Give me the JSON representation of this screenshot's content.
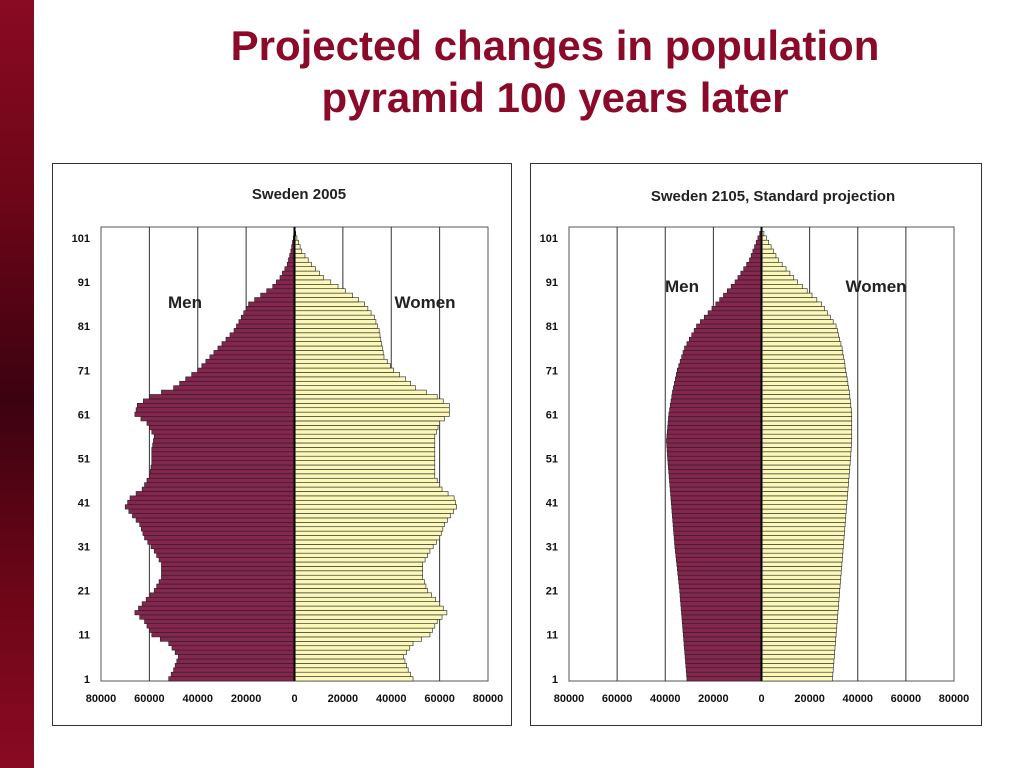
{
  "slide": {
    "title_line1": "Projected changes in population",
    "title_line2": "pyramid 100 years later"
  },
  "colors": {
    "men": "#86264f",
    "women": "#fbf8b8",
    "bar_outline": "#222222",
    "title": "#8b0a2a"
  },
  "chart_data": [
    {
      "type": "bar",
      "orientation": "horizontal-pyramid",
      "title": "Sweden 2005",
      "legend": [
        "Men",
        "Women"
      ],
      "xlim": [
        -80000,
        80000
      ],
      "x_ticks": [
        80000,
        60000,
        40000,
        20000,
        0,
        20000,
        40000,
        60000,
        80000
      ],
      "y_ticks": [
        1,
        11,
        21,
        31,
        41,
        51,
        61,
        71,
        81,
        91,
        101
      ],
      "age_range": [
        1,
        103
      ],
      "grid_x": true,
      "men": {
        "ages": [
          1,
          3,
          6,
          9,
          11,
          14,
          16,
          18,
          21,
          24,
          27,
          30,
          33,
          36,
          40,
          42,
          44,
          47,
          50,
          53,
          56,
          59,
          61,
          63,
          65,
          67,
          69,
          71,
          74,
          77,
          80,
          83,
          86,
          88,
          90,
          92,
          95,
          98,
          101,
          103
        ],
        "values": [
          52000,
          50000,
          48000,
          52000,
          59000,
          62000,
          66000,
          63000,
          58000,
          55000,
          55000,
          58000,
          62000,
          64000,
          70000,
          68000,
          63000,
          60000,
          59000,
          59000,
          58000,
          61000,
          66000,
          65000,
          60000,
          50000,
          45000,
          40000,
          35000,
          30000,
          25000,
          22000,
          19000,
          14000,
          9000,
          6000,
          3000,
          1500,
          500,
          0
        ]
      },
      "women": {
        "ages": [
          1,
          3,
          6,
          9,
          11,
          14,
          16,
          18,
          21,
          24,
          27,
          30,
          33,
          36,
          40,
          42,
          44,
          47,
          50,
          53,
          56,
          59,
          61,
          63,
          65,
          67,
          69,
          71,
          74,
          77,
          80,
          83,
          86,
          88,
          90,
          92,
          95,
          98,
          101,
          103
        ],
        "values": [
          49000,
          47000,
          45000,
          49000,
          56000,
          59000,
          63000,
          60000,
          55000,
          53000,
          53000,
          56000,
          60000,
          62000,
          67000,
          66000,
          61000,
          58000,
          58000,
          58000,
          58000,
          60000,
          64000,
          64000,
          59000,
          50000,
          46000,
          41000,
          37000,
          36000,
          35000,
          33000,
          29000,
          24000,
          18000,
          12000,
          7000,
          3000,
          1000,
          0
        ]
      }
    },
    {
      "type": "bar",
      "orientation": "horizontal-pyramid",
      "title": "Sweden 2105, Standard projection",
      "legend": [
        "Men",
        "Women"
      ],
      "xlim": [
        -80000,
        80000
      ],
      "x_ticks": [
        80000,
        60000,
        40000,
        20000,
        0,
        20000,
        40000,
        60000,
        80000
      ],
      "y_ticks": [
        1,
        11,
        21,
        31,
        41,
        51,
        61,
        71,
        81,
        91,
        101
      ],
      "age_range": [
        1,
        103
      ],
      "grid_x": true,
      "men": {
        "ages": [
          1,
          11,
          21,
          31,
          41,
          51,
          55,
          61,
          66,
          71,
          76,
          81,
          86,
          91,
          96,
          101,
          103
        ],
        "values": [
          31000,
          32500,
          34000,
          36000,
          37500,
          39000,
          39500,
          38500,
          37000,
          35000,
          32000,
          27000,
          19000,
          11000,
          5000,
          1500,
          0
        ]
      },
      "women": {
        "ages": [
          1,
          11,
          21,
          31,
          41,
          51,
          55,
          61,
          66,
          71,
          76,
          81,
          86,
          91,
          96,
          101,
          103
        ],
        "values": [
          29500,
          31000,
          32500,
          34000,
          35500,
          37000,
          37500,
          37500,
          36500,
          35000,
          33500,
          31000,
          25000,
          15000,
          7000,
          2000,
          0
        ]
      }
    }
  ]
}
